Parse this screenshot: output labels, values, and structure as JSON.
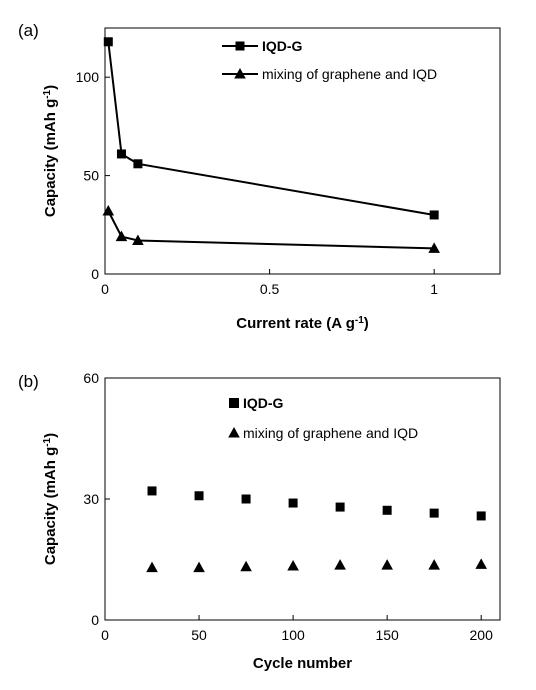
{
  "chart_data": [
    {
      "panel_label": "(a)",
      "type": "line",
      "xlabel": "Current rate (A g⁻¹)",
      "ylabel": "Capacity (mAh g⁻¹)",
      "xlim": [
        0,
        1.2
      ],
      "ylim": [
        0,
        125
      ],
      "xticks": [
        0,
        0.5,
        1
      ],
      "xtick_labels": [
        "0",
        "0.5",
        "1"
      ],
      "yticks": [
        0,
        50,
        100
      ],
      "ytick_labels": [
        "0",
        "50",
        "100"
      ],
      "legend_position": "top-right",
      "series": [
        {
          "name": "IQD-G",
          "marker": "square",
          "connected": true,
          "legend_bold": true,
          "x": [
            0.01,
            0.05,
            0.1,
            1
          ],
          "y": [
            118,
            61,
            56,
            30
          ]
        },
        {
          "name": "mixing of graphene and IQD",
          "marker": "triangle",
          "connected": true,
          "legend_bold": false,
          "x": [
            0.01,
            0.05,
            0.1,
            1
          ],
          "y": [
            32,
            19,
            17,
            13
          ]
        }
      ]
    },
    {
      "panel_label": "(b)",
      "type": "scatter",
      "xlabel": "Cycle number",
      "ylabel": "Capacity (mAh g⁻¹)",
      "xlim": [
        0,
        210
      ],
      "ylim": [
        0,
        60
      ],
      "xticks": [
        0,
        50,
        100,
        150,
        200
      ],
      "xtick_labels": [
        "0",
        "50",
        "100",
        "150",
        "200"
      ],
      "yticks": [
        0,
        30,
        60
      ],
      "ytick_labels": [
        "0",
        "30",
        "60"
      ],
      "legend_position": "top-right",
      "series": [
        {
          "name": "IQD-G",
          "marker": "square",
          "connected": false,
          "legend_bold": true,
          "x": [
            25,
            50,
            75,
            100,
            125,
            150,
            175,
            200
          ],
          "y": [
            32,
            30.8,
            30,
            29,
            28,
            27.2,
            26.5,
            25.8
          ]
        },
        {
          "name": "mixing of graphene and IQD",
          "marker": "triangle",
          "connected": false,
          "legend_bold": false,
          "x": [
            25,
            50,
            75,
            100,
            125,
            150,
            175,
            200
          ],
          "y": [
            13,
            13,
            13.2,
            13.4,
            13.6,
            13.6,
            13.6,
            13.8
          ]
        }
      ]
    }
  ]
}
